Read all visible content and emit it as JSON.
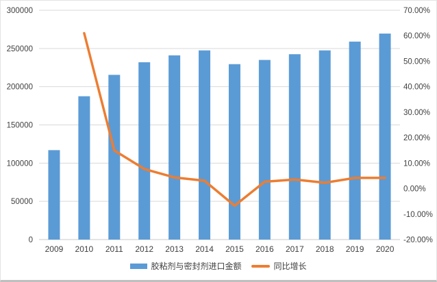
{
  "colors": {
    "bar": "#5B9BD5",
    "line": "#ED7D31",
    "grid": "#D9D9D9",
    "axis_line": "#C9C9C9",
    "text": "#404040"
  },
  "chart_data": {
    "type": "bar",
    "subtype": "bar-line-combo",
    "title": "",
    "categories": [
      "2009",
      "2010",
      "2011",
      "2012",
      "2013",
      "2014",
      "2015",
      "2016",
      "2017",
      "2018",
      "2019",
      "2020"
    ],
    "series": [
      {
        "name": "胶粘剂与密封剂进口金额",
        "type": "bar",
        "axis": "left",
        "color": "#5B9BD5",
        "values": [
          117000,
          187500,
          215500,
          232000,
          241000,
          247500,
          229500,
          235000,
          242500,
          247500,
          259000,
          269500
        ]
      },
      {
        "name": "同比增长",
        "type": "line",
        "axis": "right",
        "color": "#ED7D31",
        "values": [
          null,
          61.0,
          15.0,
          7.7,
          4.4,
          3.1,
          -6.7,
          2.7,
          3.6,
          2.3,
          4.2,
          4.2
        ]
      }
    ],
    "left_axis": {
      "min": 0,
      "max": 300000,
      "tick_values": [
        0,
        50000,
        100000,
        150000,
        200000,
        250000,
        300000
      ],
      "tick_labels": [
        "0",
        "50000",
        "100000",
        "150000",
        "200000",
        "250000",
        "300000"
      ]
    },
    "right_axis": {
      "min": -20,
      "max": 70,
      "tick_values": [
        70,
        60,
        50,
        40,
        30,
        20,
        10,
        0,
        -10,
        -20
      ],
      "tick_labels": [
        "70.00%",
        "60.00%",
        "50.00%",
        "40.00%",
        "30.00%",
        "20.00%",
        "10.00%",
        "0.00%",
        "-10.00%",
        "-20.00%"
      ]
    },
    "grid": true,
    "legend_position": "bottom"
  }
}
